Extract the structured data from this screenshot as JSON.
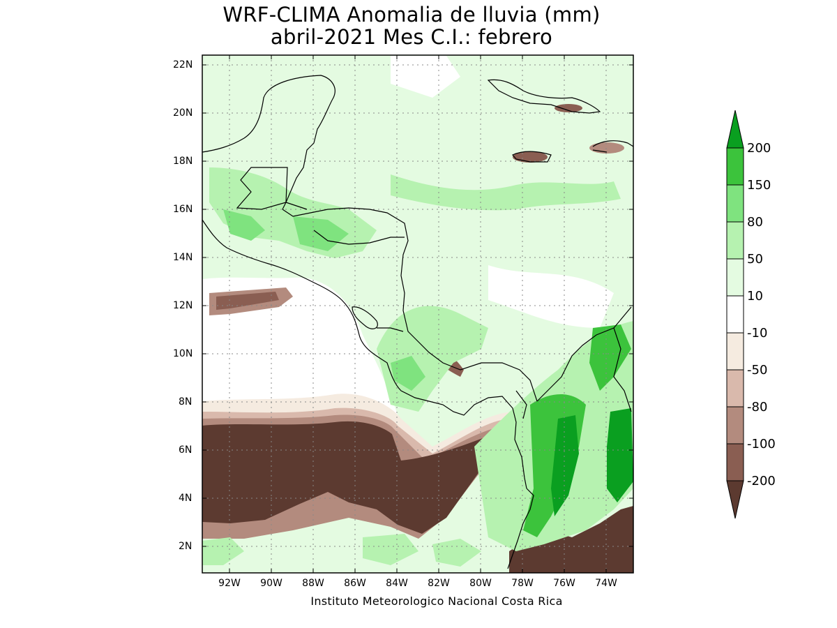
{
  "title": {
    "line1": "WRF-CLIMA Anomalia de lluvia (mm)",
    "line2": "abril-2021 Mes C.I.: febrero"
  },
  "credit": "Instituto Meteorologico Nacional Costa Rica",
  "map": {
    "lon_range": [
      -93.1,
      -72.6
    ],
    "lat_range": [
      1,
      22.4
    ],
    "lat_ticks": [
      "22N",
      "20N",
      "18N",
      "16N",
      "14N",
      "12N",
      "10N",
      "8N",
      "6N",
      "4N",
      "2N"
    ],
    "lon_ticks": [
      "92W",
      "90W",
      "88W",
      "86W",
      "84W",
      "82W",
      "80W",
      "78W",
      "76W",
      "74W"
    ],
    "grid": "dotted"
  },
  "colorbar": {
    "labels": [
      "200",
      "150",
      "80",
      "50",
      "10",
      "-10",
      "-50",
      "-80",
      "-100",
      "-200"
    ],
    "colors": [
      "#0a9f20",
      "#3cc33c",
      "#7fe37f",
      "#b6f2b0",
      "#e4fbe1",
      "#ffffff",
      "#f5ebe0",
      "#d9b9ac",
      "#b38b7e",
      "#8a5e52",
      "#5c3a30"
    ]
  },
  "regions": [
    {
      "name": "pacific-dry-anomaly",
      "class": "-200"
    },
    {
      "name": "caribbean-wet-anomaly",
      "class": "10"
    },
    {
      "name": "colombia-wet-anomaly",
      "class": "200"
    }
  ]
}
